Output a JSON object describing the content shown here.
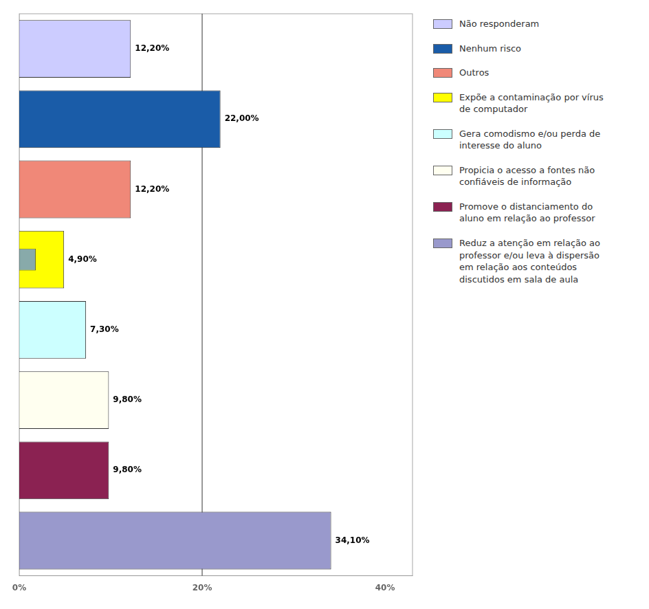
{
  "chart_data": {
    "type": "bar",
    "orientation": "horizontal",
    "categories": [
      "Não responderam",
      "Nenhum risco",
      "Outros",
      "Expõe a contaminação por vírus\nde computador",
      "Gera comodismo e/ou perda de\ninteresse do aluno",
      "Propicia o acesso a fontes não\nconfiáveis de informação",
      "Promove o distanciamento do\naluno em relação ao professor",
      "Reduz a atenção em relação ao\nprofessor e/ou leva à dispersão\nem relação aos conteúdos\ndiscutidos em sala de aula"
    ],
    "series": [
      {
        "values": [
          12.2,
          22.0,
          12.2,
          4.9,
          7.3,
          9.8,
          9.8,
          34.1
        ],
        "value_labels": [
          "12,20%",
          "22,00%",
          "12,20%",
          "4,90%",
          "7,30%",
          "9,80%",
          "9,80%",
          "34,10%"
        ],
        "colors": [
          "#ccccff",
          "#1a5ca8",
          "#f08878",
          "#ffff00",
          "#ccffff",
          "#fffff0",
          "#8b2252",
          "#9999cc"
        ]
      },
      {
        "values": [
          null,
          null,
          null,
          1.8,
          null,
          null,
          null,
          null
        ],
        "color": "#88aaaa"
      }
    ],
    "xlim": [
      0,
      43
    ],
    "xticks": [
      {
        "value": 0,
        "label": "0%"
      },
      {
        "value": 20,
        "label": "20%"
      },
      {
        "value": 40,
        "label": "40%"
      }
    ],
    "reference_line": 20,
    "tick_labels": "x",
    "grid": false,
    "legend": "right",
    "data_labels": true
  }
}
